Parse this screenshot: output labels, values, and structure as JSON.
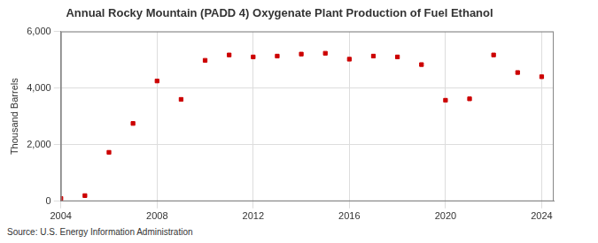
{
  "chart_data": {
    "type": "scatter",
    "title": "Annual Rocky Mountain (PADD 4) Oxygenate Plant Production of Fuel Ethanol",
    "y_label": "Thousand Barrels",
    "annotation": "Source: U.S. Energy Information Administration",
    "x": [
      2004,
      2005,
      2006,
      2007,
      2008,
      2009,
      2010,
      2011,
      2012,
      2013,
      2014,
      2015,
      2016,
      2017,
      2018,
      2019,
      2020,
      2021,
      2022,
      2023,
      2024
    ],
    "values": [
      100,
      200,
      1730,
      2750,
      4250,
      3600,
      4980,
      5170,
      5100,
      5130,
      5200,
      5230,
      5020,
      5130,
      5100,
      4830,
      3570,
      3620,
      5170,
      4550,
      4400
    ],
    "color": "#cc0000",
    "marker": "square",
    "xlim": [
      2004,
      2024.5
    ],
    "xticks": [
      2004,
      2008,
      2012,
      2016,
      2020,
      2024
    ],
    "ylim": [
      0,
      6000
    ],
    "yticks": [
      0,
      {
        "value": 2000,
        "label": "2,000"
      },
      {
        "value": 4000,
        "label": "4,000"
      },
      {
        "value": 6000,
        "label": "6,000"
      }
    ],
    "grid": true
  }
}
